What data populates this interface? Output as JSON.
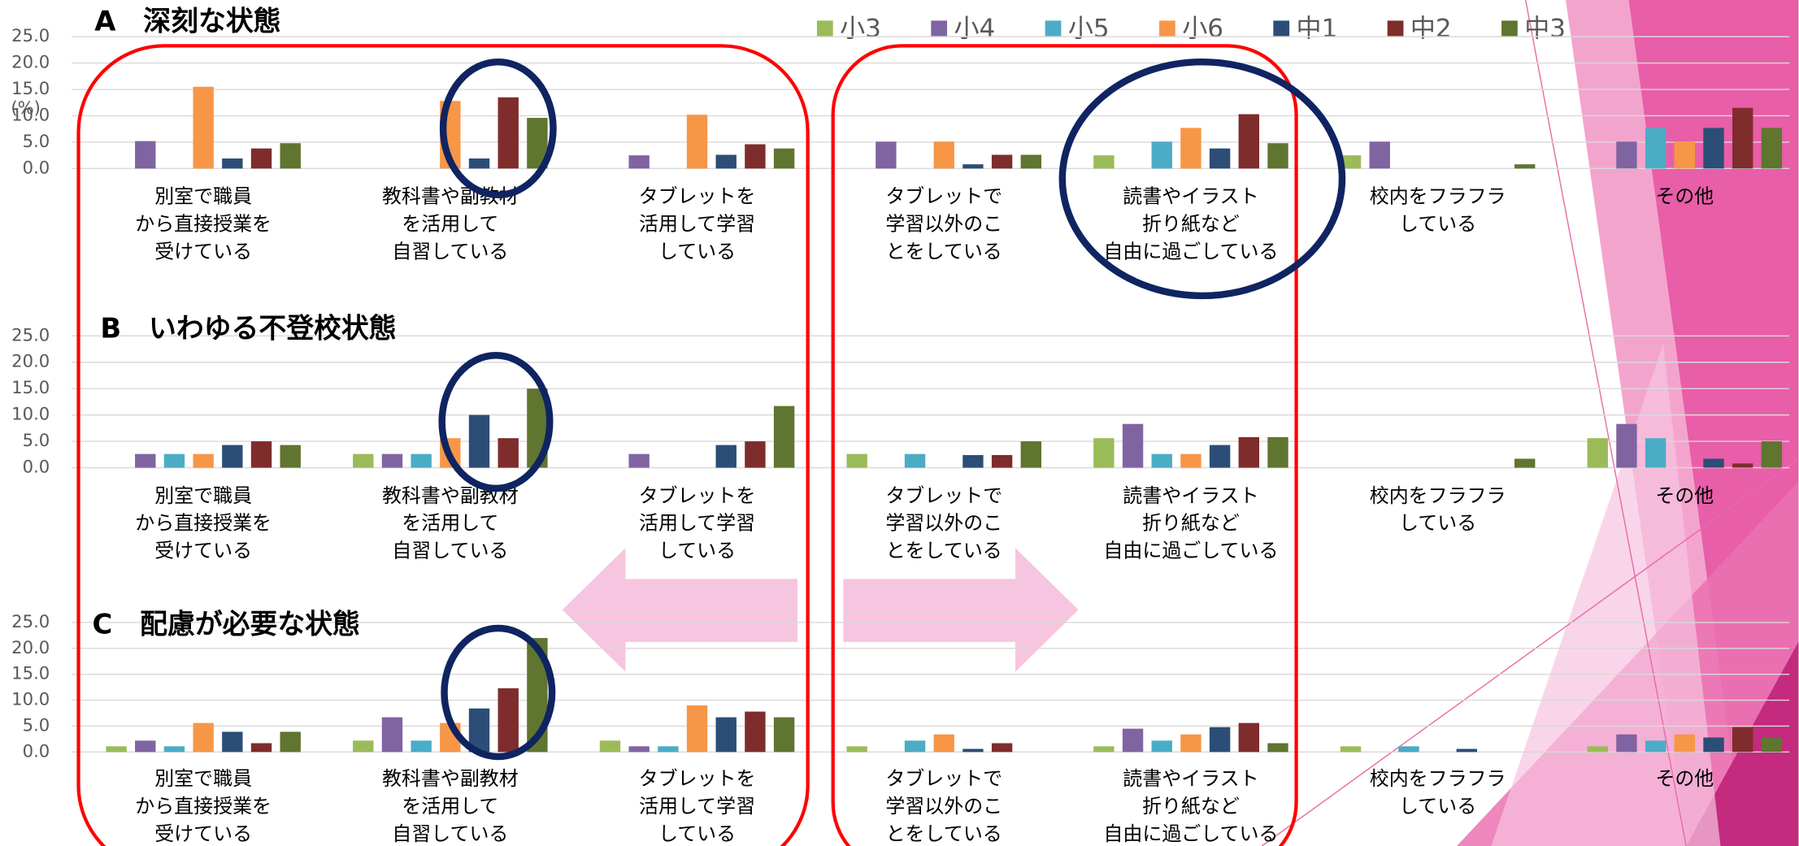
{
  "chart_data": [
    {
      "type": "bar",
      "title": "A　深刻な状態",
      "y_label": "(%)",
      "categories": [
        [
          "別室で職員",
          "から直接授業を",
          "受けている"
        ],
        [
          "教科書や副教材",
          "を活用して",
          "自習している"
        ],
        [
          "タブレットを",
          "活用して学習",
          "している"
        ],
        [
          "タブレットで",
          "学習以外のこ",
          "とをしている"
        ],
        [
          "読書やイラスト",
          "折り紙など",
          "自由に過ごしている"
        ],
        [
          "校内をフラフラ",
          "している"
        ],
        [
          "その他"
        ]
      ],
      "series": [
        {
          "name": "小3",
          "color": "#9bbb59",
          "values": [
            0,
            0,
            0,
            0,
            2.5,
            2.5,
            0
          ]
        },
        {
          "name": "小4",
          "color": "#8064a2",
          "values": [
            5.2,
            0,
            2.5,
            5.1,
            0,
            5.1,
            5.1
          ]
        },
        {
          "name": "小5",
          "color": "#4bacc6",
          "values": [
            0,
            0,
            0,
            0,
            5.1,
            0,
            7.7
          ]
        },
        {
          "name": "小6",
          "color": "#f79646",
          "values": [
            15.5,
            12.8,
            10.2,
            5.1,
            7.7,
            0,
            5.1
          ]
        },
        {
          "name": "中1",
          "color": "#2c4d75",
          "values": [
            1.9,
            1.9,
            2.6,
            0.8,
            3.8,
            0,
            7.7
          ]
        },
        {
          "name": "中2",
          "color": "#7f2c2c",
          "values": [
            3.8,
            13.5,
            4.6,
            2.6,
            10.3,
            0,
            11.5
          ]
        },
        {
          "name": "中3",
          "color": "#5f7530",
          "values": [
            4.8,
            9.6,
            3.8,
            2.6,
            4.8,
            0.8,
            7.7
          ]
        }
      ],
      "ylim": [
        0,
        25
      ],
      "yticks": [
        {
          "value": 0,
          "label": "0.0"
        },
        {
          "value": 5,
          "label": "5.0"
        },
        {
          "value": 10,
          "label": "10.0"
        },
        {
          "value": 15,
          "label": "15.0"
        },
        {
          "value": 20,
          "label": "20.0"
        },
        {
          "value": 25,
          "label": "25.0"
        }
      ],
      "grid": true
    },
    {
      "type": "bar",
      "title": "B　いわゆる不登校状態",
      "categories": [
        [
          "別室で職員",
          "から直接授業を",
          "受けている"
        ],
        [
          "教科書や副教材",
          "を活用して",
          "自習している"
        ],
        [
          "タブレットを",
          "活用して学習",
          "している"
        ],
        [
          "タブレットで",
          "学習以外のこ",
          "とをしている"
        ],
        [
          "読書やイラスト",
          "折り紙など",
          "自由に過ごしている"
        ],
        [
          "校内をフラフラ",
          "している"
        ],
        [
          "その他"
        ]
      ],
      "series": [
        {
          "color": "#9bbb59",
          "values": [
            0,
            2.6,
            0,
            2.6,
            5.6,
            0,
            5.6
          ]
        },
        {
          "color": "#8064a2",
          "values": [
            2.6,
            2.6,
            2.6,
            0,
            8.3,
            0,
            8.3
          ]
        },
        {
          "color": "#4bacc6",
          "values": [
            2.6,
            2.6,
            0,
            2.6,
            2.6,
            0,
            5.6
          ]
        },
        {
          "color": "#f79646",
          "values": [
            2.6,
            5.6,
            0,
            0,
            2.6,
            0,
            0
          ]
        },
        {
          "color": "#2c4d75",
          "values": [
            4.3,
            10.0,
            4.3,
            2.4,
            4.3,
            0,
            1.7
          ]
        },
        {
          "color": "#7f2c2c",
          "values": [
            5.0,
            5.6,
            5.0,
            2.4,
            5.8,
            0,
            0.8
          ]
        },
        {
          "color": "#5f7530",
          "values": [
            4.3,
            15.0,
            11.7,
            5.0,
            5.8,
            1.7,
            5.0
          ]
        }
      ],
      "ylim": [
        0,
        25
      ],
      "yticks": [
        {
          "value": 0,
          "label": "0.0"
        },
        {
          "value": 5,
          "label": "5.0"
        },
        {
          "value": 10,
          "label": "10.0"
        },
        {
          "value": 15,
          "label": "15.0"
        },
        {
          "value": 20,
          "label": "20.0"
        },
        {
          "value": 25,
          "label": "25.0"
        }
      ],
      "grid": true
    },
    {
      "type": "bar",
      "title": "C　配慮が必要な状態",
      "categories": [
        [
          "別室で職員",
          "から直接授業を",
          "受けている"
        ],
        [
          "教科書や副教材",
          "を活用して",
          "自習している"
        ],
        [
          "タブレットを",
          "活用して学習",
          "している"
        ],
        [
          "タブレットで",
          "学習以外のこ",
          "とをしている"
        ],
        [
          "読書やイラスト",
          "折り紙など",
          "自由に過ごしている"
        ],
        [
          "校内をフラフラ",
          "している"
        ],
        [
          "その他"
        ]
      ],
      "series": [
        {
          "color": "#9bbb59",
          "values": [
            1.1,
            2.2,
            2.2,
            1.1,
            1.1,
            1.1,
            1.1
          ]
        },
        {
          "color": "#8064a2",
          "values": [
            2.2,
            6.7,
            1.1,
            0,
            4.5,
            0,
            3.4
          ]
        },
        {
          "color": "#4bacc6",
          "values": [
            1.1,
            2.2,
            1.1,
            2.2,
            2.2,
            1.1,
            2.2
          ]
        },
        {
          "color": "#f79646",
          "values": [
            5.6,
            5.6,
            9.0,
            3.4,
            3.4,
            0,
            3.4
          ]
        },
        {
          "color": "#2c4d75",
          "values": [
            3.9,
            8.4,
            6.7,
            0.6,
            4.8,
            0.6,
            2.8
          ]
        },
        {
          "color": "#7f2c2c",
          "values": [
            1.7,
            12.3,
            7.8,
            1.7,
            5.6,
            0,
            4.8
          ]
        },
        {
          "color": "#5f7530",
          "values": [
            3.9,
            22,
            6.7,
            0,
            1.7,
            0,
            2.8
          ]
        }
      ],
      "ylim": [
        0,
        25
      ],
      "yticks": [
        {
          "value": 0,
          "label": "0.0"
        },
        {
          "value": 5,
          "label": "5.0"
        },
        {
          "value": 10,
          "label": "10.0"
        },
        {
          "value": 15,
          "label": "15.0"
        },
        {
          "value": 20,
          "label": "20.0"
        },
        {
          "value": 25,
          "label": "25.0"
        }
      ],
      "grid": true
    }
  ]
}
